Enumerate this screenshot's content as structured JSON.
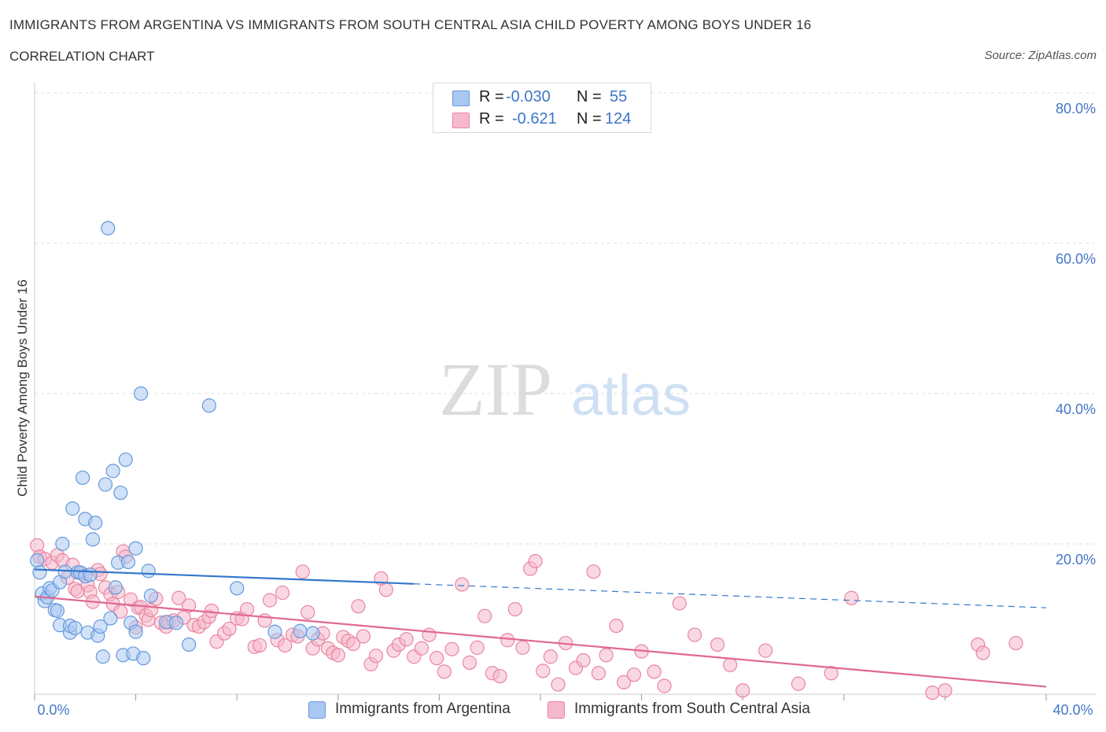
{
  "header": {
    "title": "IMMIGRANTS FROM ARGENTINA VS IMMIGRANTS FROM SOUTH CENTRAL ASIA CHILD POVERTY AMONG BOYS UNDER 16",
    "subtitle": "CORRELATION CHART",
    "source": "Source: ZipAtlas.com"
  },
  "legend": {
    "rows": [
      {
        "r_label": "R =",
        "r_value": "-0.030",
        "n_label": "N =",
        "n_value": "55"
      },
      {
        "r_label": "R =",
        "r_value": "-0.621",
        "n_label": "N =",
        "n_value": "124"
      }
    ]
  },
  "watermark": {
    "zip": "ZIP",
    "atlas": "atlas"
  },
  "colors": {
    "blue_fill": "#a9c8f2",
    "blue_stroke": "#6699dd",
    "blue_line": "#3377cc",
    "pink_fill": "#f6b8cc",
    "pink_stroke": "#e8869f",
    "pink_line": "#e06890",
    "axis_text": "#4477c8",
    "grid": "#dddddd"
  },
  "chart_data": {
    "type": "scatter",
    "title": "IMMIGRANTS FROM ARGENTINA VS IMMIGRANTS FROM SOUTH CENTRAL ASIA CHILD POVERTY AMONG BOYS UNDER 16",
    "xlabel": "",
    "ylabel": "Child Poverty Among Boys Under 16",
    "xlim": [
      0,
      40
    ],
    "ylim": [
      0,
      80
    ],
    "x_tick_labels": [
      "0.0%",
      "40.0%"
    ],
    "y_ticks": [
      20,
      40,
      60,
      80
    ],
    "y_tick_labels": [
      "20.0%",
      "40.0%",
      "60.0%",
      "80.0%"
    ],
    "grid": true,
    "legend_position": "top-center",
    "series": [
      {
        "name": "Immigrants from Argentina",
        "color": "blue",
        "R": -0.03,
        "N": 55,
        "trend": {
          "x0": 0,
          "y0": 16.6,
          "x_solid_end": 15,
          "x1": 40,
          "y1": 11.5
        },
        "points": [
          [
            0.1,
            17.8
          ],
          [
            0.2,
            16.2
          ],
          [
            0.3,
            13.4
          ],
          [
            0.4,
            12.4
          ],
          [
            0.5,
            12.9
          ],
          [
            0.6,
            14.1
          ],
          [
            0.7,
            13.8
          ],
          [
            0.8,
            11.2
          ],
          [
            0.9,
            11.1
          ],
          [
            1.0,
            14.9
          ],
          [
            1.0,
            9.2
          ],
          [
            1.1,
            20.0
          ],
          [
            1.2,
            16.3
          ],
          [
            1.4,
            8.2
          ],
          [
            1.4,
            9.1
          ],
          [
            1.5,
            24.7
          ],
          [
            1.6,
            8.8
          ],
          [
            1.7,
            16.2
          ],
          [
            1.8,
            16.2
          ],
          [
            1.9,
            28.8
          ],
          [
            2.0,
            15.7
          ],
          [
            2.0,
            23.3
          ],
          [
            2.1,
            8.2
          ],
          [
            2.2,
            15.9
          ],
          [
            2.3,
            20.6
          ],
          [
            2.4,
            22.8
          ],
          [
            2.5,
            7.8
          ],
          [
            2.6,
            9.0
          ],
          [
            2.7,
            5.0
          ],
          [
            2.8,
            27.9
          ],
          [
            2.9,
            62.0
          ],
          [
            3.0,
            10.1
          ],
          [
            3.1,
            29.7
          ],
          [
            3.2,
            14.2
          ],
          [
            3.3,
            17.5
          ],
          [
            3.4,
            26.8
          ],
          [
            3.5,
            5.2
          ],
          [
            3.6,
            31.2
          ],
          [
            3.7,
            17.6
          ],
          [
            3.8,
            9.5
          ],
          [
            3.9,
            5.4
          ],
          [
            4.0,
            19.4
          ],
          [
            4.0,
            8.3
          ],
          [
            4.2,
            40.0
          ],
          [
            4.3,
            4.8
          ],
          [
            4.5,
            16.4
          ],
          [
            4.6,
            13.1
          ],
          [
            5.2,
            9.6
          ],
          [
            5.6,
            9.5
          ],
          [
            6.1,
            6.6
          ],
          [
            6.9,
            38.4
          ],
          [
            8.0,
            14.1
          ],
          [
            9.5,
            8.3
          ],
          [
            10.5,
            8.4
          ],
          [
            11.0,
            8.1
          ]
        ]
      },
      {
        "name": "Immigrants from South Central Asia",
        "color": "pink",
        "R": -0.621,
        "N": 124,
        "trend": {
          "x0": 0,
          "y0": 13.0,
          "x1": 40,
          "y1": 1.0
        },
        "points": [
          [
            0.1,
            19.8
          ],
          [
            0.2,
            18.3
          ],
          [
            0.4,
            18.0
          ],
          [
            0.7,
            17.5
          ],
          [
            0.9,
            18.5
          ],
          [
            1.1,
            17.8
          ],
          [
            1.3,
            15.5
          ],
          [
            1.5,
            17.2
          ],
          [
            1.6,
            14.0
          ],
          [
            1.7,
            13.7
          ],
          [
            1.9,
            16.0
          ],
          [
            2.1,
            14.5
          ],
          [
            2.2,
            13.6
          ],
          [
            2.3,
            12.3
          ],
          [
            2.5,
            16.5
          ],
          [
            2.6,
            16.0
          ],
          [
            2.8,
            14.2
          ],
          [
            3.0,
            13.3
          ],
          [
            3.1,
            12.0
          ],
          [
            3.3,
            13.6
          ],
          [
            3.4,
            11.0
          ],
          [
            3.5,
            19.0
          ],
          [
            3.6,
            18.3
          ],
          [
            3.8,
            12.6
          ],
          [
            4.0,
            8.9
          ],
          [
            4.1,
            11.5
          ],
          [
            4.2,
            11.6
          ],
          [
            4.4,
            10.5
          ],
          [
            4.5,
            9.9
          ],
          [
            4.6,
            11.2
          ],
          [
            4.8,
            12.7
          ],
          [
            5.0,
            9.5
          ],
          [
            5.2,
            9.0
          ],
          [
            5.3,
            9.6
          ],
          [
            5.5,
            9.8
          ],
          [
            5.7,
            12.8
          ],
          [
            5.9,
            10.2
          ],
          [
            6.1,
            11.8
          ],
          [
            6.3,
            9.2
          ],
          [
            6.5,
            9.0
          ],
          [
            6.7,
            9.6
          ],
          [
            6.9,
            10.3
          ],
          [
            7.0,
            11.1
          ],
          [
            7.2,
            7.0
          ],
          [
            7.5,
            8.1
          ],
          [
            7.7,
            8.7
          ],
          [
            8.0,
            10.1
          ],
          [
            8.2,
            10.0
          ],
          [
            8.4,
            11.3
          ],
          [
            8.7,
            6.3
          ],
          [
            8.9,
            6.5
          ],
          [
            9.1,
            9.8
          ],
          [
            9.3,
            12.5
          ],
          [
            9.6,
            7.2
          ],
          [
            9.8,
            13.5
          ],
          [
            9.9,
            6.5
          ],
          [
            10.2,
            7.9
          ],
          [
            10.4,
            7.7
          ],
          [
            10.6,
            16.3
          ],
          [
            10.8,
            10.9
          ],
          [
            11.0,
            6.1
          ],
          [
            11.2,
            7.3
          ],
          [
            11.4,
            8.1
          ],
          [
            11.6,
            6.1
          ],
          [
            11.8,
            5.5
          ],
          [
            12.0,
            5.2
          ],
          [
            12.2,
            7.6
          ],
          [
            12.4,
            7.1
          ],
          [
            12.6,
            6.7
          ],
          [
            12.8,
            11.7
          ],
          [
            13.0,
            7.7
          ],
          [
            13.3,
            4.0
          ],
          [
            13.5,
            5.1
          ],
          [
            13.7,
            15.4
          ],
          [
            13.9,
            13.9
          ],
          [
            14.2,
            5.8
          ],
          [
            14.4,
            6.6
          ],
          [
            14.7,
            7.3
          ],
          [
            15.0,
            5.0
          ],
          [
            15.3,
            6.1
          ],
          [
            15.6,
            7.9
          ],
          [
            15.9,
            4.8
          ],
          [
            16.2,
            3.0
          ],
          [
            16.5,
            6.0
          ],
          [
            16.9,
            14.6
          ],
          [
            17.2,
            4.2
          ],
          [
            17.5,
            6.2
          ],
          [
            17.8,
            10.4
          ],
          [
            18.1,
            2.8
          ],
          [
            18.4,
            2.4
          ],
          [
            18.7,
            7.2
          ],
          [
            19.0,
            11.3
          ],
          [
            19.3,
            6.2
          ],
          [
            19.6,
            16.7
          ],
          [
            19.8,
            17.7
          ],
          [
            20.1,
            3.1
          ],
          [
            20.4,
            5.0
          ],
          [
            20.7,
            1.3
          ],
          [
            21.0,
            6.8
          ],
          [
            21.4,
            3.5
          ],
          [
            21.7,
            4.5
          ],
          [
            22.1,
            16.3
          ],
          [
            22.3,
            2.8
          ],
          [
            22.6,
            5.2
          ],
          [
            23.0,
            9.1
          ],
          [
            23.3,
            1.6
          ],
          [
            23.7,
            2.6
          ],
          [
            24.0,
            5.7
          ],
          [
            24.5,
            3.0
          ],
          [
            24.9,
            1.1
          ],
          [
            25.5,
            12.1
          ],
          [
            26.1,
            7.9
          ],
          [
            27.0,
            6.6
          ],
          [
            27.5,
            3.9
          ],
          [
            28.0,
            0.5
          ],
          [
            28.9,
            5.8
          ],
          [
            30.2,
            1.4
          ],
          [
            31.5,
            2.8
          ],
          [
            32.3,
            12.8
          ],
          [
            35.5,
            0.2
          ],
          [
            36.0,
            0.5
          ],
          [
            37.3,
            6.6
          ],
          [
            37.5,
            5.5
          ],
          [
            38.8,
            6.8
          ]
        ]
      }
    ]
  }
}
